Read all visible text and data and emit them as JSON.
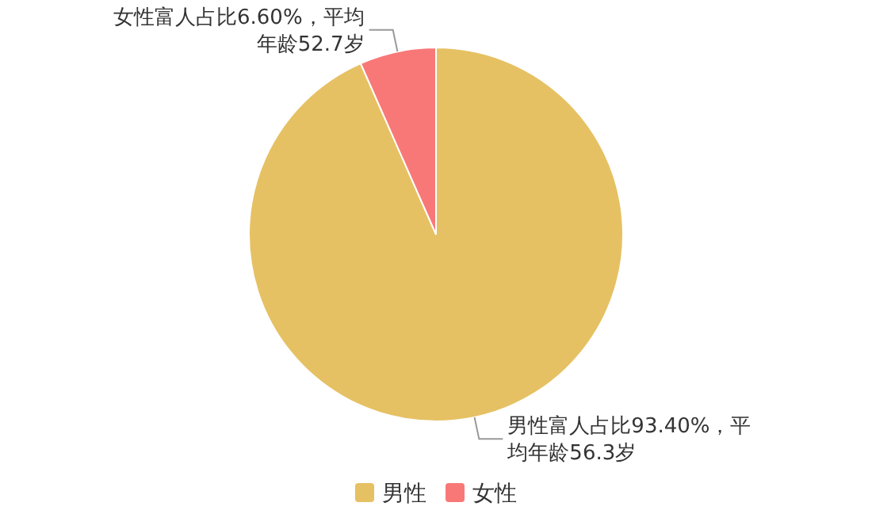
{
  "chart_data": {
    "type": "pie",
    "categories": [
      "男性",
      "女性"
    ],
    "values": [
      93.4,
      6.6
    ],
    "colors": [
      "#e6c163",
      "#f87878"
    ],
    "value_labels": [
      "男性富人占比93.40%，平均年龄56.3岁",
      "女性富人占比6.60%，平均年龄52.7岁"
    ],
    "legend": "bottom"
  }
}
